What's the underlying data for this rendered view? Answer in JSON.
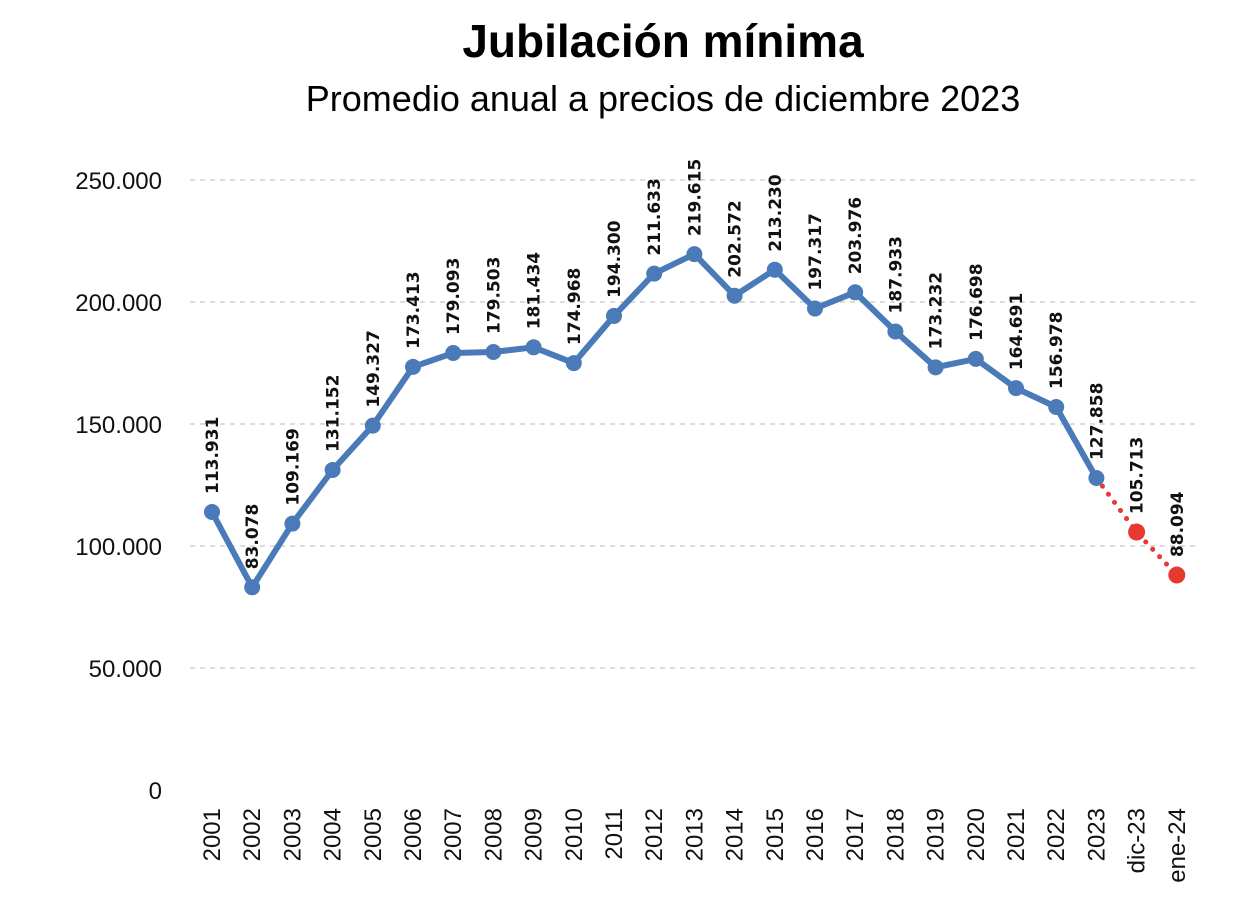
{
  "chart_data": {
    "type": "line",
    "title": "Jubilación mínima",
    "subtitle": "Promedio anual a precios de diciembre 2023",
    "categories": [
      "2001",
      "2002",
      "2003",
      "2004",
      "2005",
      "2006",
      "2007",
      "2008",
      "2009",
      "2010",
      "2011",
      "2012",
      "2013",
      "2014",
      "2015",
      "2016",
      "2017",
      "2018",
      "2019",
      "2020",
      "2021",
      "2022",
      "2023",
      "dic-23",
      "ene-24"
    ],
    "series": [
      {
        "values": [
          113931,
          83078,
          109169,
          131152,
          149327,
          173413,
          179093,
          179503,
          181434,
          174968,
          194300,
          211633,
          219615,
          202572,
          213230,
          197317,
          203976,
          187933,
          173232,
          176698,
          164691,
          156978,
          127858,
          null,
          null
        ],
        "color": "#4a7ab7",
        "style": "solid"
      },
      {
        "values": [
          null,
          null,
          null,
          null,
          null,
          null,
          null,
          null,
          null,
          null,
          null,
          null,
          null,
          null,
          null,
          null,
          null,
          null,
          null,
          null,
          null,
          null,
          127858,
          105713,
          88094
        ],
        "color": "#e53a2f",
        "style": "dotted"
      }
    ],
    "data_labels": [
      "113.931",
      "83.078",
      "109.169",
      "131.152",
      "149.327",
      "173.413",
      "179.093",
      "179.503",
      "181.434",
      "174.968",
      "194.300",
      "211.633",
      "219.615",
      "202.572",
      "213.230",
      "197.317",
      "203.976",
      "187.933",
      "173.232",
      "176.698",
      "164.691",
      "156.978",
      "127.858",
      "105.713",
      "88.094"
    ],
    "yticks": [
      0,
      50000,
      100000,
      150000,
      200000,
      250000
    ],
    "ytick_labels": [
      "0",
      "50.000",
      "100.000",
      "150.000",
      "200.000",
      "250.000"
    ],
    "ylim": [
      0,
      250000
    ],
    "grid": true,
    "xlabel": "",
    "ylabel": ""
  }
}
